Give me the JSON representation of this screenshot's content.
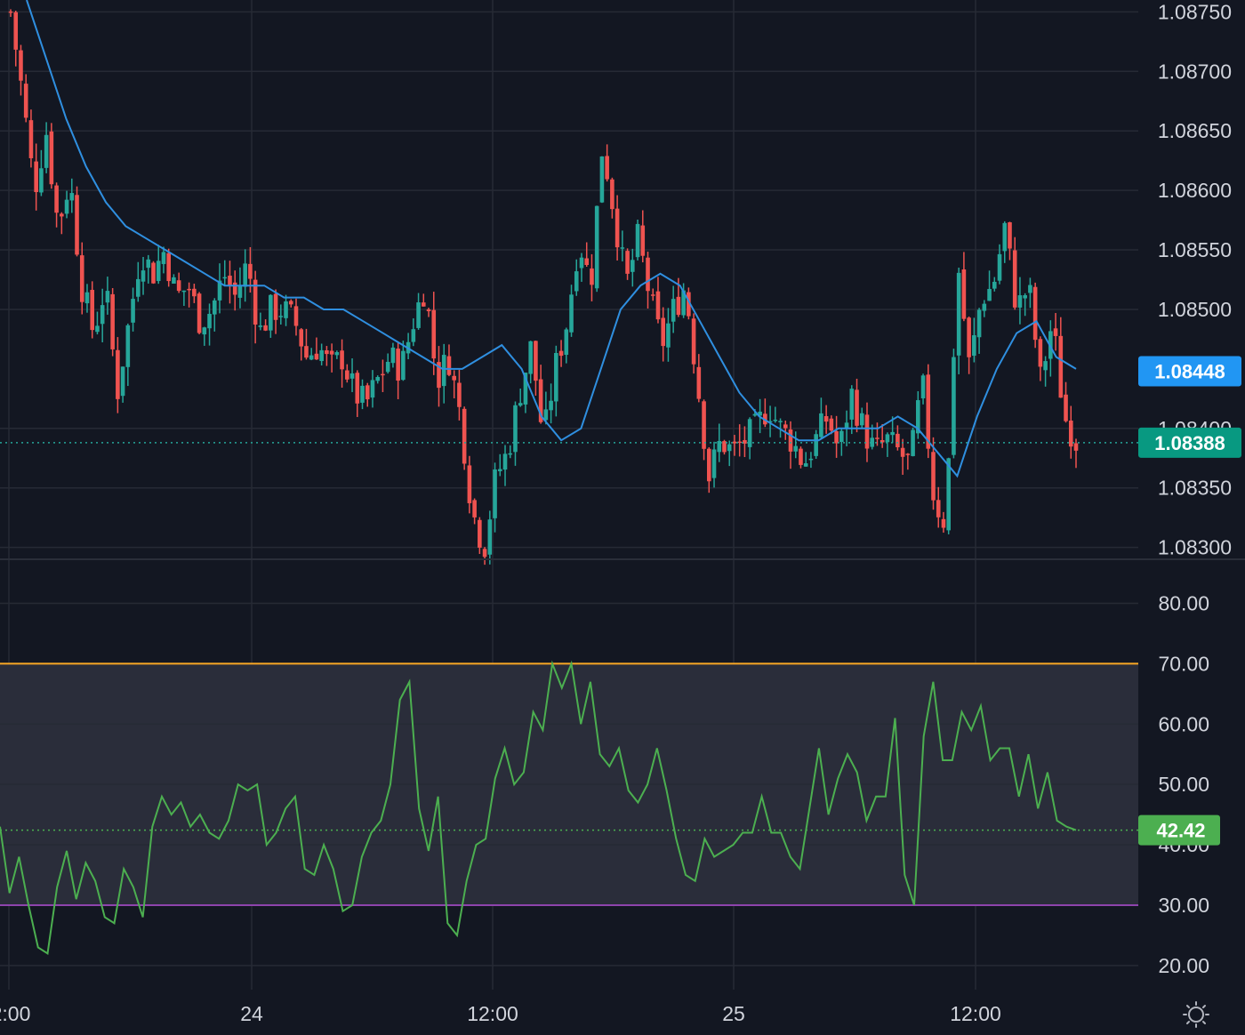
{
  "colors": {
    "background": "#131722",
    "grid": "#262a35",
    "up": "#26a69a",
    "down": "#ef5350",
    "ma": "#2f8fe0",
    "rsi": "#4caf50",
    "rsi_upper": "#f9a825",
    "rsi_lower": "#8e44ad",
    "rsi_band": "#2a2d3a",
    "badge_ma": "#2196f3",
    "badge_price": "#089981",
    "badge_rsi": "#4caf50",
    "axis_text": "#d1d4dc"
  },
  "settings_icon": "sun-gear-icon",
  "chart_data": [
    {
      "type": "candlestick",
      "symbol_pane": "price",
      "y_ticks": [
        "1.08750",
        "1.08700",
        "1.08650",
        "1.08600",
        "1.08550",
        "1.08500",
        "1.08400",
        "1.08350",
        "1.08300"
      ],
      "ylim": [
        1.0829,
        1.0876
      ],
      "last_price": "1.08388",
      "ma_value": "1.08448",
      "close_path": [
        1.0875,
        1.0868,
        1.086,
        1.0865,
        1.0857,
        1.0861,
        1.0852,
        1.0848,
        1.0852,
        1.0843,
        1.0849,
        1.0855,
        1.0853,
        1.0855,
        1.0851,
        1.0852,
        1.0849,
        1.085,
        1.0853,
        1.0851,
        1.0854,
        1.0848,
        1.085,
        1.085,
        1.0849,
        1.0846,
        1.0847,
        1.0845,
        1.0846,
        1.0843,
        1.0842,
        1.0844,
        1.0846,
        1.0845,
        1.0849,
        1.0852,
        1.0844,
        1.0846,
        1.0841,
        1.0833,
        1.083,
        1.0836,
        1.0838,
        1.0843,
        1.0847,
        1.0839,
        1.0845,
        1.0849,
        1.0856,
        1.0852,
        1.0864,
        1.0858,
        1.0852,
        1.0856,
        1.0851,
        1.0847,
        1.085,
        1.0852,
        1.0844,
        1.0836,
        1.0839,
        1.0838,
        1.0839,
        1.084,
        1.0842,
        1.084,
        1.0839,
        1.0837,
        1.0839,
        1.0841,
        1.0838,
        1.0843,
        1.084,
        1.0838,
        1.0839,
        1.0838,
        1.0837,
        1.0844,
        1.0834,
        1.0832,
        1.0854,
        1.0845,
        1.0851,
        1.0852,
        1.0857,
        1.085,
        1.0852,
        1.0844,
        1.0849,
        1.0841,
        1.0839
      ],
      "ma_path": [
        1.0876,
        1.0871,
        1.0866,
        1.0862,
        1.0859,
        1.0857,
        1.0856,
        1.0855,
        1.0854,
        1.0853,
        1.0852,
        1.0852,
        1.0852,
        1.0851,
        1.0851,
        1.085,
        1.085,
        1.0849,
        1.0848,
        1.0847,
        1.0846,
        1.0845,
        1.0845,
        1.0846,
        1.0847,
        1.0845,
        1.0841,
        1.0839,
        1.084,
        1.0845,
        1.085,
        1.0852,
        1.0853,
        1.0852,
        1.0849,
        1.0846,
        1.0843,
        1.0841,
        1.084,
        1.0839,
        1.0839,
        1.084,
        1.084,
        1.084,
        1.0841,
        1.084,
        1.0838,
        1.0836,
        1.0841,
        1.0845,
        1.0848,
        1.0849,
        1.0846,
        1.0845
      ],
      "series": [
        {
          "name": "",
          "role": "price"
        },
        {
          "name": "",
          "role": "moving-average"
        }
      ]
    },
    {
      "type": "line",
      "symbol_pane": "rsi",
      "y_ticks": [
        "80.00",
        "70.00",
        "60.00",
        "50.00",
        "40.00",
        "30.00",
        "20.00"
      ],
      "ylim": [
        16,
        87
      ],
      "upper_band": 70,
      "lower_band": 30,
      "last_value": "42.42",
      "values": [
        43,
        32,
        38,
        30,
        23,
        22,
        33,
        39,
        31,
        37,
        34,
        28,
        27,
        36,
        33,
        28,
        43,
        48,
        45,
        47,
        43,
        45,
        42,
        41,
        44,
        50,
        49,
        50,
        40,
        42,
        46,
        48,
        36,
        35,
        40,
        36,
        29,
        30,
        38,
        42,
        44,
        50,
        64,
        67,
        46,
        39,
        48,
        27,
        25,
        34,
        40,
        41,
        51,
        56,
        50,
        52,
        62,
        59,
        70,
        66,
        70,
        60,
        67,
        55,
        53,
        56,
        49,
        47,
        50,
        56,
        49,
        41,
        35,
        34,
        41,
        38,
        39,
        40,
        42,
        42,
        48,
        42,
        42,
        38,
        36,
        46,
        56,
        45,
        51,
        55,
        52,
        44,
        48,
        48,
        61,
        35,
        30,
        58,
        67,
        54,
        54,
        62,
        59,
        63,
        54,
        56,
        56,
        48,
        55,
        46,
        52,
        44,
        43,
        42.42
      ]
    }
  ],
  "time_axis": {
    "labels": [
      "2:00",
      "24",
      "12:00",
      "25",
      "12:00"
    ]
  }
}
